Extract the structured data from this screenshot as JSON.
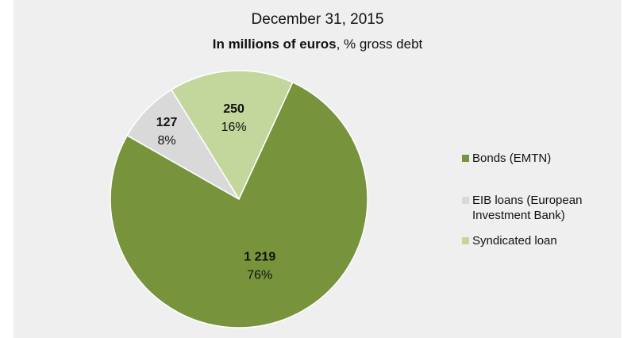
{
  "chart_data": {
    "type": "pie",
    "title": "December 31, 2015",
    "subtitle_bold": "In millions of euros",
    "subtitle_rest": ", % gross debt",
    "categories": [
      "Bonds (EMTN)",
      "EIB loans (European Investment Bank)",
      "Syndicated loan"
    ],
    "values": [
      1219,
      127,
      250
    ],
    "value_labels": [
      "1 219",
      "127",
      "250"
    ],
    "percent_labels": [
      "76%",
      "8%",
      "16%"
    ],
    "colors": [
      "#77933c",
      "#d9d9d9",
      "#c3d69b"
    ],
    "legend": {
      "position": "right",
      "entries": [
        "Bonds (EMTN)",
        "EIB loans (European\nInvestment Bank)",
        "Syndicated loan"
      ]
    }
  }
}
